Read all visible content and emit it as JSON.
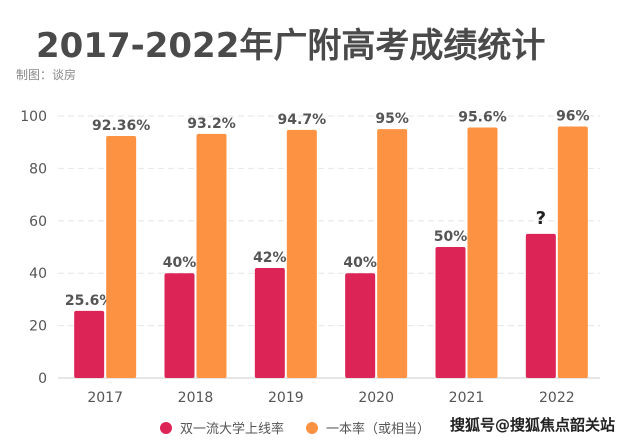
{
  "header": {
    "title": "2017-2022年广附高考成绩统计",
    "credit": "制图：谈房"
  },
  "watermark": "搜狐号@搜狐焦点韶关站",
  "legend": [
    {
      "label": "双一流大学上线率",
      "color": "#dc2456"
    },
    {
      "label": "一本率（或相当）",
      "color": "#fd9342"
    }
  ],
  "chart_data": {
    "type": "bar",
    "title": "2017-2022年广附高考成绩统计",
    "xlabel": "",
    "ylabel": "",
    "categories": [
      "2017",
      "2018",
      "2019",
      "2020",
      "2021",
      "2022"
    ],
    "ylim": [
      0,
      100
    ],
    "yticks": [
      0,
      20,
      40,
      60,
      80,
      100
    ],
    "grid": true,
    "legend_position": "bottom",
    "series": [
      {
        "name": "双一流大学上线率",
        "color": "#dc2456",
        "values": [
          25.6,
          40,
          42,
          40,
          50,
          55
        ],
        "labels": [
          "25.6%",
          "40%",
          "42%",
          "40%",
          "50%",
          "?"
        ]
      },
      {
        "name": "一本率（或相当）",
        "color": "#fd9342",
        "values": [
          92.36,
          93.2,
          94.7,
          95,
          95.6,
          96
        ],
        "labels": [
          "92.36%",
          "93.2%",
          "94.7%",
          "95%",
          "95.6%",
          "96%"
        ]
      }
    ]
  }
}
